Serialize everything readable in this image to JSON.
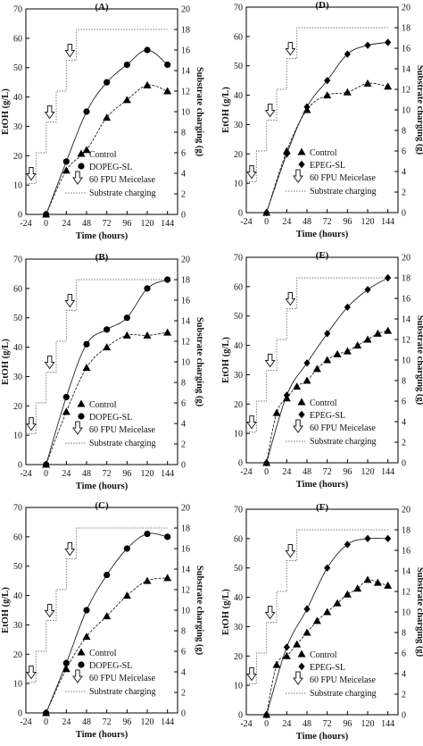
{
  "figure": {
    "panels": [
      {
        "id": "A",
        "label": "(A)",
        "xlabel": "Time (hours)",
        "ylabel": "EtOH (g/L)",
        "y2label": "Substrate charging (g)",
        "xticks": [
          "-24",
          "0",
          "24",
          "48",
          "72",
          "96",
          "120",
          "144"
        ],
        "yticks": [
          "0",
          "10",
          "20",
          "30",
          "40",
          "50",
          "60",
          "70"
        ],
        "y2ticks": [
          "0",
          "2",
          "4",
          "6",
          "8",
          "10",
          "12",
          "14",
          "16",
          "18",
          "20"
        ],
        "legend": {
          "control": "Control",
          "treated": "DOPEG-SL",
          "enzyme": "60 FPU Meicelase",
          "charging": "Substrate charging"
        }
      },
      {
        "id": "D",
        "label": "(D)",
        "xlabel": "Time (hours)",
        "ylabel": "EtOH (g/L)",
        "y2label": "Substrate charging (g)",
        "xticks": [
          "-24",
          "0",
          "24",
          "48",
          "72",
          "96",
          "120",
          "144"
        ],
        "yticks": [
          "0",
          "10",
          "20",
          "30",
          "40",
          "50",
          "60",
          "70"
        ],
        "y2ticks": [
          "0",
          "2",
          "4",
          "6",
          "8",
          "10",
          "12",
          "14",
          "16",
          "18",
          "20"
        ],
        "legend": {
          "control": "Control",
          "treated": "EPEG-SL",
          "enzyme": "60 FPU Meicelase",
          "charging": "Substrate charging"
        }
      },
      {
        "id": "B",
        "label": "(B)",
        "xlabel": "Time (hours)",
        "ylabel": "EtOH (g/L)",
        "y2label": "Substrate charging (g)",
        "xticks": [
          "-24",
          "0",
          "24",
          "48",
          "72",
          "96",
          "120",
          "144"
        ],
        "yticks": [
          "0",
          "10",
          "20",
          "30",
          "40",
          "50",
          "60",
          "70"
        ],
        "y2ticks": [
          "0",
          "2",
          "4",
          "6",
          "8",
          "10",
          "12",
          "14",
          "16",
          "18",
          "20"
        ],
        "legend": {
          "control": "Control",
          "treated": "DOPEG-SL",
          "enzyme": "60 FPU Meicelase",
          "charging": "Substrate charging"
        }
      },
      {
        "id": "E",
        "label": "(E)",
        "xlabel": "Time (hours)",
        "ylabel": "EtOH (g/L)",
        "y2label": "Substrate charging (g)",
        "xticks": [
          "-24",
          "0",
          "24",
          "48",
          "72",
          "96",
          "120",
          "144"
        ],
        "yticks": [
          "0",
          "10",
          "20",
          "30",
          "40",
          "50",
          "60",
          "70"
        ],
        "y2ticks": [
          "0",
          "2",
          "4",
          "6",
          "8",
          "10",
          "12",
          "14",
          "16",
          "18",
          "20"
        ],
        "legend": {
          "control": "Control",
          "treated": "EPEG-SL",
          "enzyme": "60 FPU Meicelase",
          "charging": "Substrate charging"
        }
      },
      {
        "id": "C",
        "label": "(C)",
        "xlabel": "Time (hours)",
        "ylabel": "EtOH (g/L)",
        "y2label": "Substrate charging (g)",
        "xticks": [
          "-24",
          "0",
          "24",
          "48",
          "72",
          "96",
          "120",
          "144"
        ],
        "yticks": [
          "0",
          "10",
          "20",
          "30",
          "40",
          "50",
          "60",
          "70"
        ],
        "y2ticks": [
          "0",
          "2",
          "4",
          "6",
          "8",
          "10",
          "12",
          "14",
          "16",
          "18",
          "20"
        ],
        "legend": {
          "control": "Control",
          "treated": "DOPEG-SL",
          "enzyme": "60 FPU Meicelase",
          "charging": "Substrate charging"
        }
      },
      {
        "id": "F",
        "label": "(F)",
        "xlabel": "Time (hours)",
        "ylabel": "EtOH (g/L)",
        "y2label": "Substrate charging (g)",
        "xticks": [
          "-24",
          "0",
          "24",
          "48",
          "72",
          "96",
          "120",
          "144"
        ],
        "yticks": [
          "0",
          "10",
          "20",
          "30",
          "40",
          "50",
          "60",
          "70"
        ],
        "y2ticks": [
          "0",
          "2",
          "4",
          "6",
          "8",
          "10",
          "12",
          "14",
          "16",
          "18",
          "20"
        ],
        "legend": {
          "control": "Control",
          "treated": "EPEG-SL",
          "enzyme": "60 FPU Meicelase",
          "charging": "Substrate charging"
        }
      }
    ]
  },
  "chart_data": [
    {
      "type": "scatter",
      "panel": "A",
      "xlim": [
        -24,
        156
      ],
      "ylim": [
        0,
        70
      ],
      "y2lim": [
        0,
        20
      ],
      "series": [
        {
          "name": "Control",
          "marker": "triangle",
          "x": [
            0,
            24,
            48,
            72,
            96,
            120,
            144
          ],
          "y": [
            0,
            15,
            22,
            33,
            39,
            44,
            42
          ]
        },
        {
          "name": "DOPEG-SL",
          "marker": "circle",
          "x": [
            0,
            24,
            48,
            72,
            96,
            120,
            144
          ],
          "y": [
            0,
            18,
            35,
            45,
            51,
            56,
            51
          ]
        },
        {
          "name": "Substrate charging",
          "axis": "right",
          "style": "dotted-step",
          "x": [
            -24,
            -12,
            0,
            12,
            24,
            36,
            48,
            60,
            72,
            144
          ],
          "y": [
            3,
            6,
            9,
            12,
            15,
            18,
            18,
            18,
            18,
            18
          ]
        }
      ],
      "enzyme_additions_x": [
        -24,
        0,
        24
      ]
    },
    {
      "type": "scatter",
      "panel": "D",
      "xlim": [
        -24,
        156
      ],
      "ylim": [
        0,
        70
      ],
      "y2lim": [
        0,
        20
      ],
      "series": [
        {
          "name": "Control",
          "marker": "triangle",
          "x": [
            0,
            24,
            48,
            72,
            96,
            120,
            144
          ],
          "y": [
            0,
            21,
            35,
            40,
            41,
            44,
            43
          ]
        },
        {
          "name": "EPEG-SL",
          "marker": "diamond",
          "x": [
            0,
            24,
            48,
            72,
            96,
            120,
            144
          ],
          "y": [
            0,
            20,
            36,
            45,
            54,
            57,
            58
          ]
        },
        {
          "name": "Substrate charging",
          "axis": "right",
          "style": "dotted-step",
          "x": [
            -24,
            -12,
            0,
            12,
            24,
            36,
            48,
            144
          ],
          "y": [
            3,
            6,
            9,
            12,
            15,
            18,
            18,
            18
          ]
        }
      ],
      "enzyme_additions_x": [
        -24,
        0,
        24
      ]
    },
    {
      "type": "scatter",
      "panel": "B",
      "xlim": [
        -24,
        156
      ],
      "ylim": [
        0,
        70
      ],
      "y2lim": [
        0,
        20
      ],
      "series": [
        {
          "name": "Control",
          "marker": "triangle",
          "x": [
            0,
            24,
            48,
            72,
            96,
            120,
            144
          ],
          "y": [
            0,
            18,
            33,
            40,
            44,
            44,
            45
          ]
        },
        {
          "name": "DOPEG-SL",
          "marker": "circle",
          "x": [
            0,
            24,
            48,
            72,
            96,
            120,
            144
          ],
          "y": [
            0,
            23,
            41,
            46,
            50,
            60,
            63
          ]
        },
        {
          "name": "Substrate charging",
          "axis": "right",
          "style": "dotted-step",
          "x": [
            -24,
            -12,
            0,
            12,
            24,
            36,
            48,
            144
          ],
          "y": [
            3,
            6,
            9,
            12,
            15,
            18,
            18,
            18
          ]
        }
      ],
      "enzyme_additions_x": [
        -24,
        0,
        24
      ]
    },
    {
      "type": "scatter",
      "panel": "E",
      "xlim": [
        -24,
        156
      ],
      "ylim": [
        0,
        70
      ],
      "y2lim": [
        0,
        20
      ],
      "series": [
        {
          "name": "Control",
          "marker": "triangle",
          "x": [
            0,
            12,
            24,
            36,
            48,
            60,
            72,
            84,
            96,
            108,
            120,
            132,
            144
          ],
          "y": [
            0,
            17,
            22,
            26,
            28,
            32,
            35,
            37,
            38,
            40,
            42,
            44,
            45
          ]
        },
        {
          "name": "EPEG-SL",
          "marker": "diamond",
          "x": [
            0,
            24,
            48,
            72,
            96,
            120,
            144
          ],
          "y": [
            0,
            23,
            34,
            44,
            53,
            59,
            63
          ]
        },
        {
          "name": "Substrate charging",
          "axis": "right",
          "style": "dotted-step",
          "x": [
            -24,
            -12,
            0,
            12,
            24,
            36,
            48,
            144
          ],
          "y": [
            3,
            6,
            9,
            12,
            15,
            18,
            18,
            18
          ]
        }
      ],
      "enzyme_additions_x": [
        -24,
        0,
        24
      ]
    },
    {
      "type": "scatter",
      "panel": "C",
      "xlim": [
        -24,
        156
      ],
      "ylim": [
        0,
        70
      ],
      "y2lim": [
        0,
        20
      ],
      "series": [
        {
          "name": "Control",
          "marker": "triangle",
          "x": [
            0,
            24,
            48,
            72,
            96,
            120,
            144
          ],
          "y": [
            0,
            15,
            26,
            33,
            40,
            45,
            46
          ]
        },
        {
          "name": "DOPEG-SL",
          "marker": "circle",
          "x": [
            0,
            24,
            48,
            72,
            96,
            120,
            144
          ],
          "y": [
            0,
            17,
            35,
            47,
            56,
            61,
            60
          ]
        },
        {
          "name": "Substrate charging",
          "axis": "right",
          "style": "dotted-step",
          "x": [
            -24,
            -12,
            0,
            12,
            24,
            36,
            48,
            144
          ],
          "y": [
            3,
            6,
            9,
            12,
            15,
            18,
            18,
            18
          ]
        }
      ],
      "enzyme_additions_x": [
        -24,
        0,
        24
      ]
    },
    {
      "type": "scatter",
      "panel": "F",
      "xlim": [
        -24,
        156
      ],
      "ylim": [
        0,
        70
      ],
      "y2lim": [
        0,
        20
      ],
      "series": [
        {
          "name": "Control",
          "marker": "triangle",
          "x": [
            0,
            12,
            24,
            36,
            48,
            60,
            72,
            84,
            96,
            108,
            120,
            132,
            144
          ],
          "y": [
            0,
            17,
            20,
            24,
            28,
            32,
            35,
            38,
            41,
            43,
            46,
            45,
            44
          ]
        },
        {
          "name": "EPEG-SL",
          "marker": "diamond",
          "x": [
            0,
            24,
            48,
            72,
            96,
            120,
            144
          ],
          "y": [
            0,
            23,
            36,
            50,
            58,
            60,
            60
          ]
        },
        {
          "name": "Substrate charging",
          "axis": "right",
          "style": "dotted-step",
          "x": [
            -24,
            -12,
            0,
            12,
            24,
            36,
            48,
            144
          ],
          "y": [
            3,
            6,
            9,
            12,
            15,
            18,
            18,
            18
          ]
        }
      ],
      "enzyme_additions_x": [
        -24,
        0,
        24
      ]
    }
  ]
}
